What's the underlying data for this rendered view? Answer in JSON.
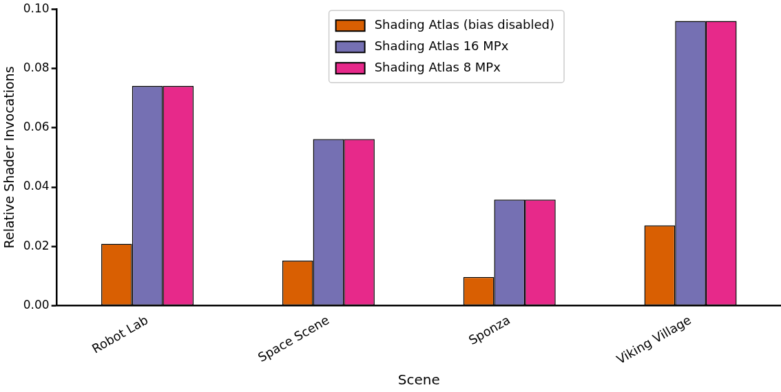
{
  "chart_data": {
    "type": "bar",
    "xlabel": "Scene",
    "ylabel": "Relative Shader Invocations",
    "categories": [
      "Robot Lab",
      "Space Scene",
      "Sponza",
      "Viking Village"
    ],
    "series": [
      {
        "name": "Shading Atlas (bias disabled)",
        "color": "#d95f02",
        "values": [
          0.0209,
          0.0152,
          0.0097,
          0.0271
        ]
      },
      {
        "name": "Shading Atlas 16 MPx",
        "color": "#7570b3",
        "values": [
          0.0741,
          0.0562,
          0.0358,
          0.096
        ]
      },
      {
        "name": "Shading Atlas 8 MPx",
        "color": "#e7298a",
        "values": [
          0.0741,
          0.0562,
          0.0358,
          0.096
        ]
      }
    ],
    "ylim": [
      0,
      0.1
    ],
    "yticks": [
      {
        "value": 0,
        "label": "0.00"
      },
      {
        "value": 0.02,
        "label": "0.02"
      },
      {
        "value": 0.04,
        "label": "0.04"
      },
      {
        "value": 0.06,
        "label": "0.06"
      },
      {
        "value": 0.08,
        "label": "0.08"
      },
      {
        "value": 0.1,
        "label": "0.10"
      }
    ],
    "grid": false,
    "legend": "top"
  }
}
